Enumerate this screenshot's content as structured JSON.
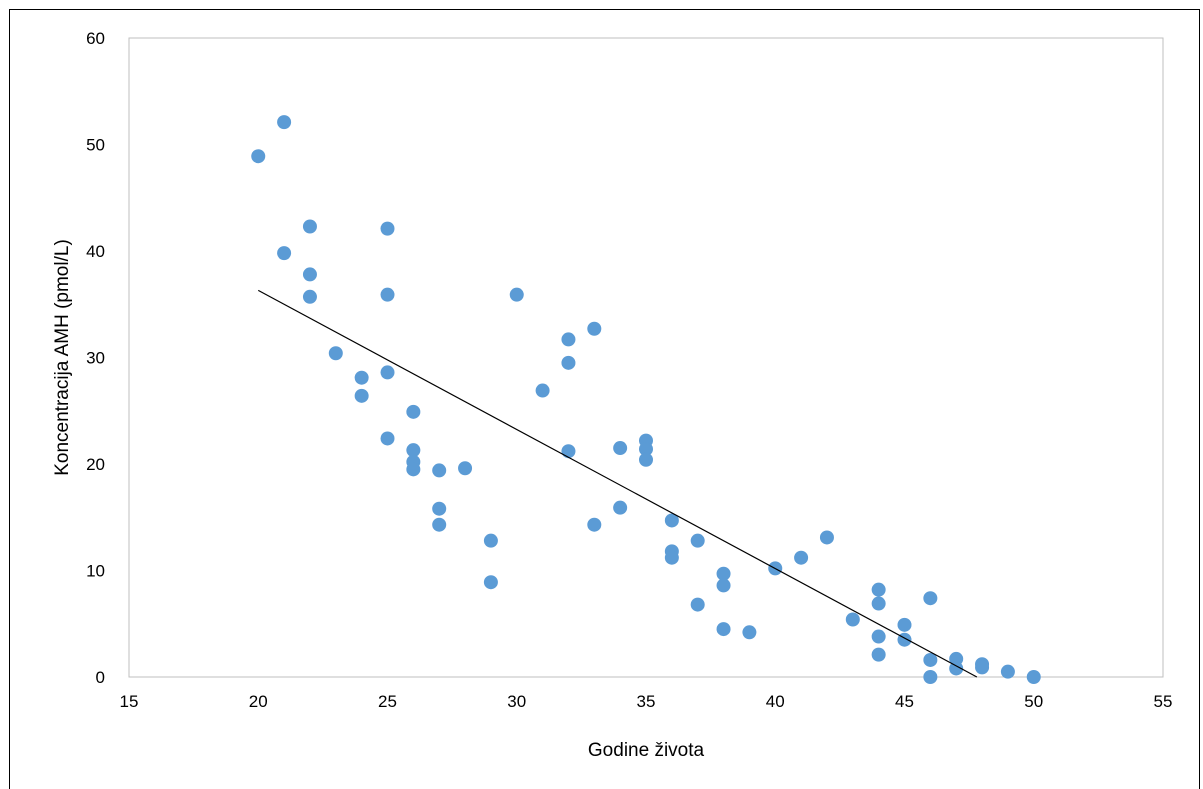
{
  "chart_data": {
    "type": "scatter",
    "title": "",
    "xlabel": "Godine života",
    "ylabel": "Koncentracija AMH (pmol/L)",
    "xlim": [
      15,
      55
    ],
    "ylim": [
      0,
      60
    ],
    "xticks": [
      15,
      20,
      25,
      30,
      35,
      40,
      45,
      50,
      55
    ],
    "yticks": [
      0,
      10,
      20,
      30,
      40,
      50,
      60
    ],
    "grid": false,
    "legend": "none",
    "marker_color": "#5b9bd5",
    "trendline": {
      "type": "linear",
      "x": [
        20,
        47.8
      ],
      "y": [
        36.3,
        0
      ]
    },
    "series": [
      {
        "points": [
          [
            20,
            48.9
          ],
          [
            21,
            52.1
          ],
          [
            21,
            39.8
          ],
          [
            22,
            42.3
          ],
          [
            22,
            37.8
          ],
          [
            22,
            35.7
          ],
          [
            23,
            30.4
          ],
          [
            24,
            28.1
          ],
          [
            24,
            26.4
          ],
          [
            25,
            42.1
          ],
          [
            25,
            35.9
          ],
          [
            25,
            28.6
          ],
          [
            25,
            22.4
          ],
          [
            26,
            24.9
          ],
          [
            26,
            21.3
          ],
          [
            26,
            20.2
          ],
          [
            26,
            19.5
          ],
          [
            27,
            19.4
          ],
          [
            27,
            15.8
          ],
          [
            27,
            14.3
          ],
          [
            28,
            19.6
          ],
          [
            29,
            12.8
          ],
          [
            29,
            8.9
          ],
          [
            30,
            35.9
          ],
          [
            31,
            26.9
          ],
          [
            32,
            31.7
          ],
          [
            32,
            29.5
          ],
          [
            32,
            21.2
          ],
          [
            33,
            32.7
          ],
          [
            33,
            14.3
          ],
          [
            34,
            21.5
          ],
          [
            34,
            15.9
          ],
          [
            35,
            22.2
          ],
          [
            35,
            21.4
          ],
          [
            35,
            20.4
          ],
          [
            36,
            14.7
          ],
          [
            36,
            11.8
          ],
          [
            36,
            11.2
          ],
          [
            37,
            12.8
          ],
          [
            37,
            6.8
          ],
          [
            38,
            9.7
          ],
          [
            38,
            8.6
          ],
          [
            38,
            4.5
          ],
          [
            39,
            4.2
          ],
          [
            40,
            10.2
          ],
          [
            41,
            11.2
          ],
          [
            42,
            13.1
          ],
          [
            43,
            5.4
          ],
          [
            44,
            8.2
          ],
          [
            44,
            6.9
          ],
          [
            44,
            3.8
          ],
          [
            44,
            2.1
          ],
          [
            45,
            4.9
          ],
          [
            45,
            3.5
          ],
          [
            46,
            7.4
          ],
          [
            46,
            1.6
          ],
          [
            46,
            0
          ],
          [
            47,
            1.7
          ],
          [
            47,
            0.8
          ],
          [
            48,
            1.2
          ],
          [
            48,
            0.9
          ],
          [
            49,
            0.5
          ],
          [
            50,
            0
          ]
        ]
      }
    ]
  }
}
